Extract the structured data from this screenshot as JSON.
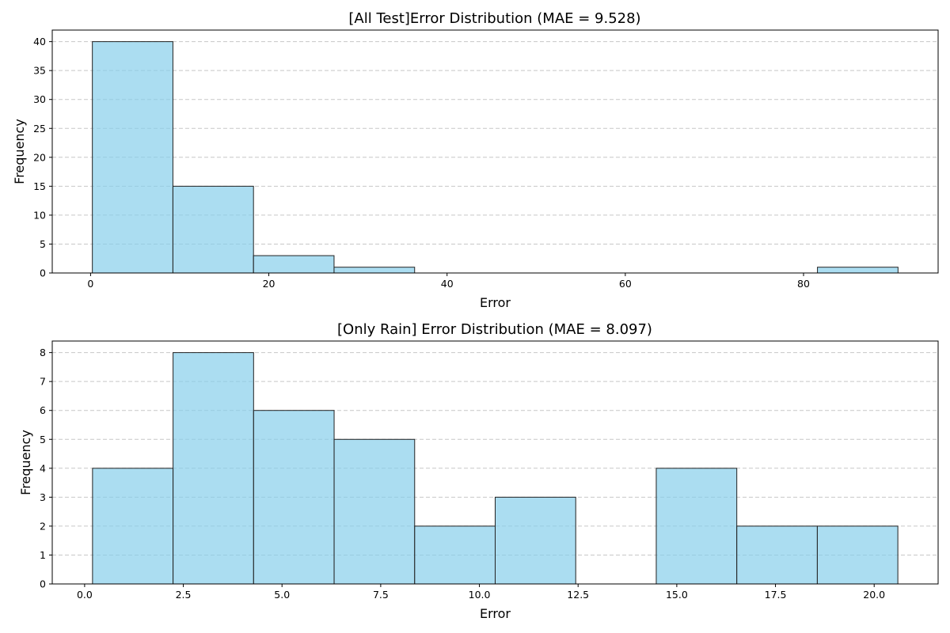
{
  "colors": {
    "bar_fill": "#87ceeb",
    "bar_edge": "#000000",
    "grid": "#b0b0b0"
  },
  "chart_data": [
    {
      "type": "bar",
      "title": "[All Test]Error Distribution (MAE = 9.528)",
      "xlabel": "Error",
      "ylabel": "Frequency",
      "bin_edges": [
        0.2,
        9.24,
        18.28,
        27.32,
        36.36,
        45.4,
        54.44,
        63.48,
        72.52,
        81.56,
        90.6
      ],
      "values": [
        40,
        15,
        3,
        1,
        0,
        0,
        0,
        0,
        0,
        1
      ],
      "xlim": [
        -4.3,
        95.1
      ],
      "ylim": [
        0,
        42
      ],
      "xticks": [
        0,
        20,
        40,
        60,
        80
      ],
      "xtick_labels": [
        "0",
        "20",
        "40",
        "60",
        "80"
      ],
      "yticks": [
        0,
        5,
        10,
        15,
        20,
        25,
        30,
        35,
        40
      ],
      "ytick_labels": [
        "0",
        "5",
        "10",
        "15",
        "20",
        "25",
        "30",
        "35",
        "40"
      ],
      "grid": "y"
    },
    {
      "type": "bar",
      "title": "[Only Rain] Error Distribution (MAE = 8.097)",
      "xlabel": "Error",
      "ylabel": "Frequency",
      "bin_edges": [
        0.2,
        2.24,
        4.28,
        6.32,
        8.36,
        10.4,
        12.44,
        14.48,
        16.52,
        18.56,
        20.6
      ],
      "values": [
        4,
        8,
        6,
        5,
        2,
        3,
        0,
        4,
        2,
        2
      ],
      "xlim": [
        -0.82,
        21.62
      ],
      "ylim": [
        0,
        8.4
      ],
      "xticks": [
        0,
        2.5,
        5,
        7.5,
        10,
        12.5,
        15,
        17.5,
        20
      ],
      "xtick_labels": [
        "0.0",
        "2.5",
        "5.0",
        "7.5",
        "10.0",
        "12.5",
        "15.0",
        "17.5",
        "20.0"
      ],
      "yticks": [
        0,
        1,
        2,
        3,
        4,
        5,
        6,
        7,
        8
      ],
      "ytick_labels": [
        "0",
        "1",
        "2",
        "3",
        "4",
        "5",
        "6",
        "7",
        "8"
      ],
      "grid": "y"
    }
  ]
}
